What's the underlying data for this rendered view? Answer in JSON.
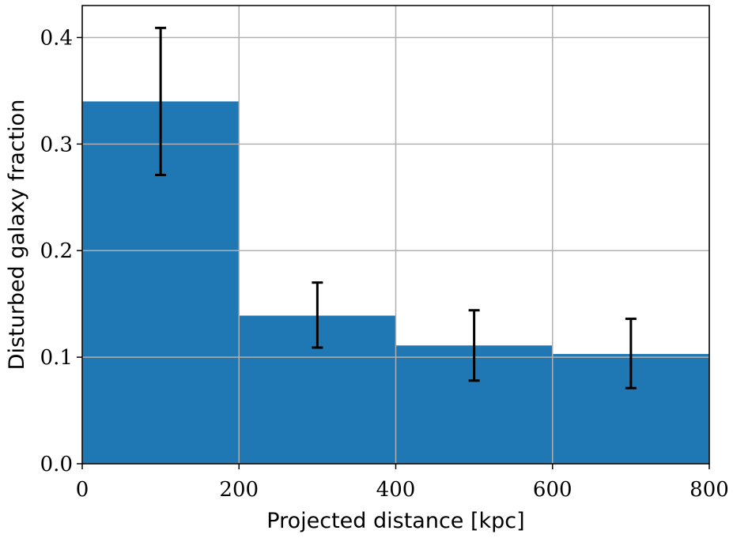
{
  "chart_data": {
    "type": "bar",
    "bin_edges": [
      0,
      200,
      400,
      600,
      800
    ],
    "bin_centers": [
      100,
      300,
      500,
      700
    ],
    "values": [
      0.34,
      0.139,
      0.111,
      0.103
    ],
    "error_low": [
      0.271,
      0.109,
      0.078,
      0.071
    ],
    "error_high": [
      0.409,
      0.17,
      0.144,
      0.136
    ],
    "xlabel": "Projected distance [kpc]",
    "ylabel": "Disturbed galaxy fraction",
    "xlim": [
      0,
      800
    ],
    "ylim": [
      0,
      0.43
    ],
    "xticks": [
      0,
      200,
      400,
      600,
      800
    ],
    "xtick_labels": [
      "0",
      "200",
      "400",
      "600",
      "800"
    ],
    "yticks": [
      0.0,
      0.1,
      0.2,
      0.3,
      0.4
    ],
    "ytick_labels": [
      "0.0",
      "0.1",
      "0.2",
      "0.3",
      "0.4"
    ],
    "grid": true,
    "bar_color": "#1f77b4",
    "errorbar_color": "#000000",
    "grid_color": "#b0b0b0"
  }
}
